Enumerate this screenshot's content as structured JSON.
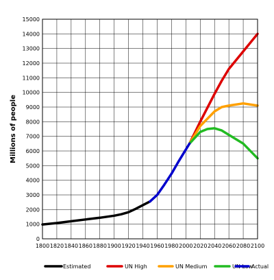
{
  "chart_data": {
    "type": "line",
    "title": "",
    "xlabel": "",
    "ylabel": "Millions of people",
    "xlim": [
      1800,
      2100
    ],
    "ylim": [
      0,
      15000
    ],
    "x_ticks": [
      "1800",
      "1820",
      "1840",
      "1860",
      "1880",
      "1900",
      "1920",
      "1940",
      "1960",
      "1980",
      "2000",
      "2020",
      "2040",
      "2060",
      "2080",
      "2100"
    ],
    "y_ticks": [
      "0",
      "1000",
      "2000",
      "3000",
      "4000",
      "5000",
      "6000",
      "7000",
      "8000",
      "9000",
      "10000",
      "11000",
      "12000",
      "13000",
      "14000",
      "15000"
    ],
    "grid": true,
    "legend": "bottom",
    "series": [
      {
        "name": "Estimated",
        "color": "#000000",
        "points": [
          [
            1800,
            980
          ],
          [
            1820,
            1080
          ],
          [
            1840,
            1200
          ],
          [
            1860,
            1320
          ],
          [
            1880,
            1440
          ],
          [
            1900,
            1580
          ],
          [
            1910,
            1680
          ],
          [
            1920,
            1820
          ],
          [
            1930,
            2050
          ],
          [
            1940,
            2300
          ],
          [
            1950,
            2550
          ]
        ]
      },
      {
        "name": "UN High",
        "color": "#dd0000",
        "points": [
          [
            2005,
            6500
          ],
          [
            2020,
            8000
          ],
          [
            2040,
            9900
          ],
          [
            2050,
            10800
          ],
          [
            2060,
            11600
          ],
          [
            2080,
            12800
          ],
          [
            2100,
            14000
          ]
        ]
      },
      {
        "name": "UN Medium",
        "color": "#ffa000",
        "points": [
          [
            2005,
            6500
          ],
          [
            2020,
            7700
          ],
          [
            2040,
            8700
          ],
          [
            2050,
            9000
          ],
          [
            2060,
            9100
          ],
          [
            2080,
            9250
          ],
          [
            2100,
            9100
          ]
        ]
      },
      {
        "name": "UN Low",
        "color": "#22bb22",
        "points": [
          [
            2005,
            6500
          ],
          [
            2020,
            7300
          ],
          [
            2030,
            7500
          ],
          [
            2040,
            7550
          ],
          [
            2050,
            7400
          ],
          [
            2060,
            7100
          ],
          [
            2080,
            6500
          ],
          [
            2100,
            5500
          ]
        ]
      },
      {
        "name": "Actual",
        "color": "#0000cc",
        "points": [
          [
            1950,
            2550
          ],
          [
            1960,
            3000
          ],
          [
            1970,
            3700
          ],
          [
            1980,
            4450
          ],
          [
            1990,
            5300
          ],
          [
            2000,
            6100
          ],
          [
            2005,
            6500
          ]
        ]
      }
    ]
  }
}
